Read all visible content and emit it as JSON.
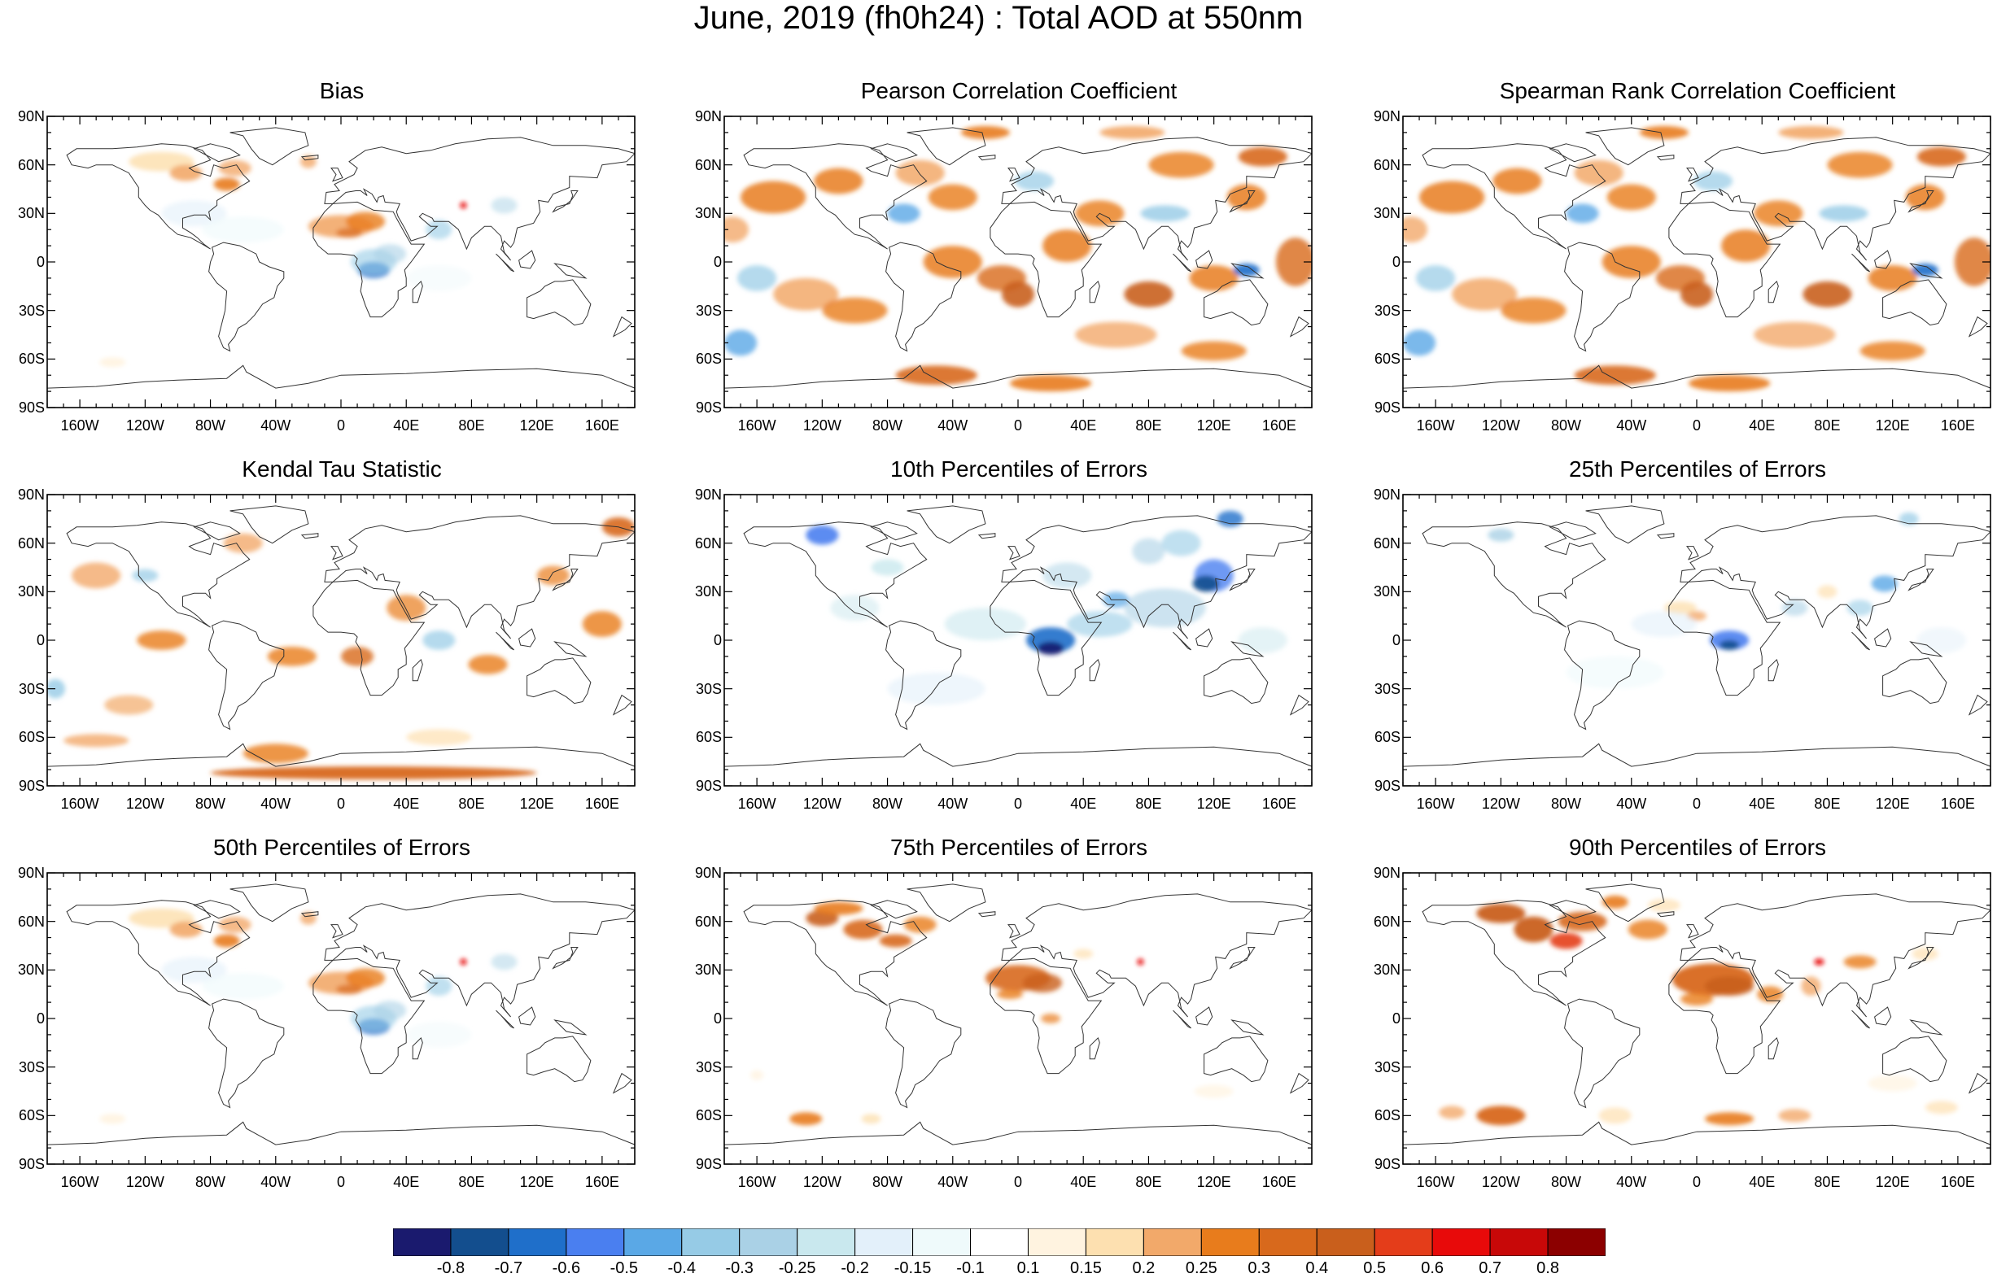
{
  "title": "June, 2019 (fh0h24) : Total AOD at 550nm",
  "panels": [
    {
      "title": "Bias",
      "pattern": "bias"
    },
    {
      "title": "Pearson Correlation Coefficient",
      "pattern": "corr"
    },
    {
      "title": "Spearman Rank Correlation Coefficient",
      "pattern": "corr"
    },
    {
      "title": "Kendal Tau Statistic",
      "pattern": "tau"
    },
    {
      "title": "10th Percentiles of Errors",
      "pattern": "p10"
    },
    {
      "title": "25th Percentiles of Errors",
      "pattern": "p25"
    },
    {
      "title": "50th Percentiles of Errors",
      "pattern": "bias"
    },
    {
      "title": "75th Percentiles of Errors",
      "pattern": "p75"
    },
    {
      "title": "90th Percentiles of Errors",
      "pattern": "p90"
    }
  ],
  "lat_labels": [
    "90N",
    "60N",
    "30N",
    "0",
    "30S",
    "60S",
    "90S"
  ],
  "lon_labels": [
    "160W",
    "120W",
    "80W",
    "40W",
    "0",
    "40E",
    "80E",
    "120E",
    "160E"
  ],
  "colorbar": {
    "colors": [
      "#1a1a6e",
      "#134e8e",
      "#1f6fca",
      "#4a7ff0",
      "#5aa8e6",
      "#96cbe6",
      "#aad1e6",
      "#c9e8ee",
      "#e3f0fa",
      "#effafb",
      "#ffffff",
      "#fff3e0",
      "#fde0b0",
      "#f2a96a",
      "#e87c1c",
      "#d8691c",
      "#c95f1c",
      "#e43d1a",
      "#e80a0a",
      "#c80808",
      "#8c0000"
    ],
    "labels": [
      "-0.8",
      "-0.7",
      "-0.6",
      "-0.5",
      "-0.4",
      "-0.3",
      "-0.25",
      "-0.2",
      "-0.15",
      "-0.1",
      "0.1",
      "0.15",
      "0.2",
      "0.25",
      "0.3",
      "0.4",
      "0.5",
      "0.6",
      "0.7",
      "0.8"
    ]
  }
}
